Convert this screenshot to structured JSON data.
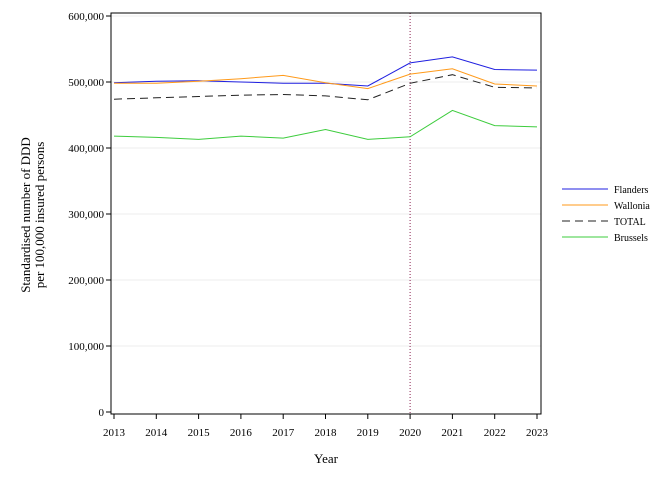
{
  "chart_data": {
    "type": "line",
    "xlabel": "Year",
    "ylabel_lines": [
      "Standardised number of DDD",
      "per 100,000 insured persons"
    ],
    "x": [
      2013,
      2014,
      2015,
      2016,
      2017,
      2018,
      2019,
      2020,
      2021,
      2022,
      2023
    ],
    "x_tick_labels": [
      "2013",
      "2014",
      "2015",
      "2016",
      "2017",
      "2018",
      "2019",
      "2020",
      "2021",
      "2022",
      "2023"
    ],
    "ylim": [
      0,
      600000
    ],
    "y_ticks": [
      0,
      100000,
      200000,
      300000,
      400000,
      500000,
      600000
    ],
    "y_tick_labels": [
      "0",
      "100,000",
      "200,000",
      "300,000",
      "400,000",
      "500,000",
      "600,000"
    ],
    "grid": "horizontal",
    "legend_position": "right",
    "reference_line": {
      "x": 2020,
      "color": "#8b2252",
      "style": "dotted"
    },
    "series": [
      {
        "name": "Flanders",
        "color": "#1f1fe0",
        "dash": "",
        "values": [
          499000,
          501000,
          502000,
          500000,
          498000,
          498000,
          494000,
          529000,
          538000,
          519000,
          518000
        ]
      },
      {
        "name": "Wallonia",
        "color": "#ff9a1a",
        "dash": "",
        "values": [
          498000,
          498000,
          501000,
          505000,
          510000,
          499000,
          490000,
          512000,
          520000,
          497000,
          494000
        ]
      },
      {
        "name": "TOTAL",
        "color": "#222222",
        "dash": "8,5",
        "values": [
          474000,
          476000,
          478000,
          480000,
          481000,
          479000,
          473000,
          498000,
          511000,
          492000,
          491000
        ]
      },
      {
        "name": "Brussels",
        "color": "#3dcc3d",
        "dash": "",
        "values": [
          418000,
          416000,
          413000,
          418000,
          415000,
          428000,
          413000,
          417000,
          457000,
          434000,
          432000
        ]
      }
    ]
  }
}
